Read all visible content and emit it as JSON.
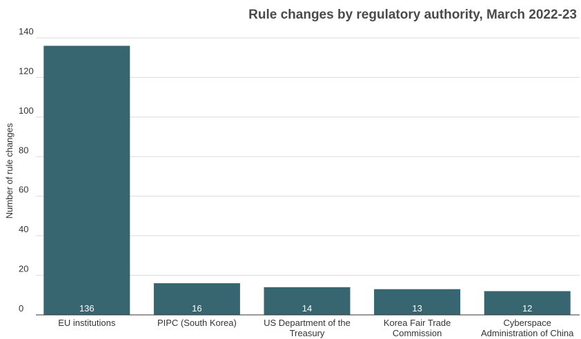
{
  "chart_data": {
    "type": "bar",
    "title": "Rule changes by regulatory authority, March 2022-23",
    "ylabel": "Number of rule changes",
    "xlabel": "",
    "categories": [
      [
        "EU institutions"
      ],
      [
        "PIPC (South Korea)"
      ],
      [
        "US Department of the",
        "Treasury"
      ],
      [
        "Korea Fair Trade",
        "Commission"
      ],
      [
        "Cyberspace",
        "Administration of China"
      ]
    ],
    "values": [
      136,
      16,
      14,
      13,
      12
    ],
    "ylim": [
      0,
      140
    ],
    "yticks": [
      0,
      20,
      40,
      60,
      80,
      100,
      120,
      140
    ],
    "grid": true,
    "legend": "none",
    "bar_color": "#376570",
    "data_labels": true
  }
}
